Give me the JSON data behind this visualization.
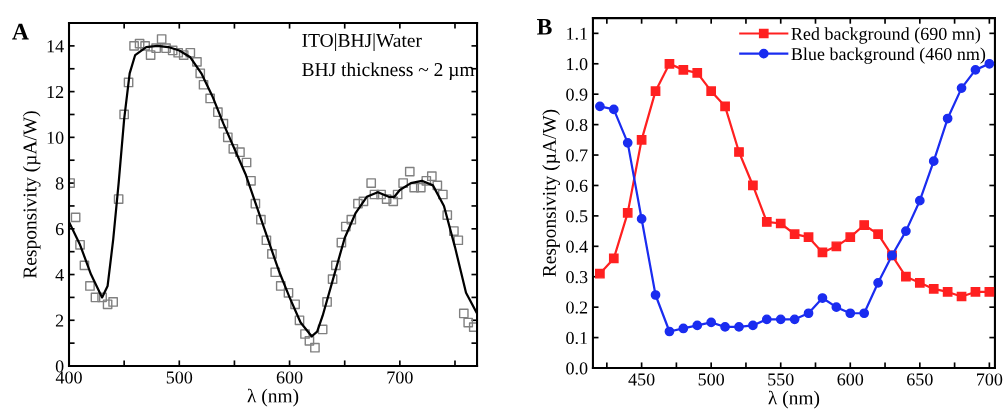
{
  "chart_data": [
    {
      "type": "scatter",
      "xlabel": "λ (nm)",
      "ylabel": "Responsivity (µA/W)",
      "annotations": [
        "A",
        "ITO|BHJ|Water",
        "BHJ thickness ~ 2 µm"
      ],
      "xlim": [
        400,
        770
      ],
      "ylim": [
        0,
        15
      ],
      "xticks": [
        400,
        {
          "value": 450,
          "label": null
        },
        500,
        {
          "value": 550,
          "label": null
        },
        600,
        {
          "value": 650,
          "label": null
        },
        700,
        {
          "value": 750,
          "label": null
        }
      ],
      "yticks": [
        0,
        {
          "value": 1,
          "label": null
        },
        2,
        {
          "value": 3,
          "label": null
        },
        4,
        {
          "value": 5,
          "label": null
        },
        6,
        {
          "value": 7,
          "label": null
        },
        8,
        {
          "value": 9,
          "label": null
        },
        10,
        {
          "value": 11,
          "label": null
        },
        12,
        {
          "value": 13,
          "label": null
        },
        14
      ],
      "grid": false,
      "legend": false,
      "series": [
        {
          "type": "scatter",
          "marker": "square",
          "color": "#808080",
          "x": [
            401,
            406,
            410,
            414,
            419,
            424,
            430,
            435,
            440,
            445,
            450,
            454,
            459,
            464,
            469,
            474,
            479,
            484,
            488,
            494,
            499,
            504,
            510,
            516,
            519,
            522,
            528,
            535,
            540,
            544,
            549,
            555,
            561,
            565,
            569,
            574,
            579,
            584,
            587,
            592,
            599,
            605,
            609,
            614,
            618,
            623,
            630,
            634,
            639,
            642,
            647,
            651,
            656,
            662,
            667,
            674,
            677,
            683,
            688,
            694,
            698,
            703,
            709,
            713,
            719,
            724,
            729,
            734,
            739,
            743,
            749,
            753,
            758,
            762,
            767
          ],
          "values": [
            8.0,
            6.5,
            5.3,
            4.4,
            3.5,
            3.0,
            3.0,
            2.7,
            2.8,
            7.3,
            11.0,
            12.4,
            14.0,
            14.1,
            14.0,
            13.6,
            13.9,
            14.3,
            13.9,
            13.8,
            13.7,
            13.6,
            13.7,
            13.3,
            12.8,
            12.3,
            11.7,
            11.1,
            10.6,
            10.0,
            9.5,
            9.35,
            8.9,
            8.1,
            7.1,
            6.4,
            5.5,
            4.9,
            4.1,
            3.5,
            3.2,
            2.7,
            2.0,
            1.4,
            1.1,
            0.8,
            1.6,
            2.8,
            3.8,
            4.4,
            5.4,
            6.1,
            6.4,
            7.1,
            7.2,
            8.0,
            7.5,
            7.5,
            7.3,
            7.2,
            7.5,
            8.0,
            8.5,
            7.8,
            7.8,
            8.1,
            8.3,
            7.9,
            7.5,
            6.6,
            5.9,
            5.5,
            2.3,
            1.9,
            1.7
          ]
        },
        {
          "type": "line",
          "marker": "none",
          "line_style": "solid",
          "color": "#000000",
          "x": [
            400,
            410,
            420,
            430,
            435,
            440,
            445,
            450,
            455,
            460,
            470,
            480,
            490,
            500,
            510,
            520,
            530,
            540,
            550,
            560,
            570,
            580,
            590,
            600,
            610,
            620,
            625,
            630,
            640,
            650,
            660,
            670,
            680,
            690,
            695,
            700,
            710,
            720,
            730,
            740,
            750,
            760,
            770
          ],
          "values": [
            6.3,
            5.3,
            4.0,
            3.0,
            3.5,
            5.5,
            8.0,
            10.8,
            12.8,
            13.6,
            13.95,
            14.0,
            13.95,
            13.8,
            13.5,
            12.8,
            11.8,
            10.6,
            9.5,
            8.4,
            7.0,
            5.6,
            4.2,
            3.0,
            1.9,
            1.3,
            1.5,
            2.2,
            3.9,
            5.6,
            6.7,
            7.4,
            7.6,
            7.4,
            7.4,
            7.7,
            8.0,
            8.1,
            7.9,
            7.0,
            5.2,
            3.2,
            2.3
          ]
        }
      ]
    },
    {
      "type": "line",
      "xlabel": "λ (nm)",
      "ylabel": "Responsivity (µA/W)",
      "annotations": [
        "B"
      ],
      "xlim": [
        415,
        704
      ],
      "ylim": [
        0,
        1.15
      ],
      "xticks": [
        {
          "value": 425,
          "label": null
        },
        450,
        {
          "value": 475,
          "label": null
        },
        500,
        {
          "value": 525,
          "label": null
        },
        550,
        {
          "value": 575,
          "label": null
        },
        600,
        {
          "value": 625,
          "label": null
        },
        650,
        {
          "value": 675,
          "label": null
        },
        700
      ],
      "yticks": [
        {
          "value": 0,
          "label": "0.0"
        },
        0.1,
        0.2,
        0.3,
        0.4,
        0.5,
        0.6,
        0.7,
        0.8,
        0.9,
        {
          "value": 1,
          "label": "1.0"
        },
        1.1
      ],
      "grid": false,
      "legend": "top right",
      "series": [
        {
          "name": "Red background (690 mn)",
          "marker": "square",
          "line_style": "solid",
          "color": "#ff2020",
          "x": [
            420,
            430,
            440,
            450,
            460,
            470,
            480,
            490,
            500,
            510,
            520,
            530,
            540,
            550,
            560,
            570,
            580,
            590,
            600,
            610,
            620,
            630,
            640,
            650,
            660,
            670,
            680,
            690,
            700
          ],
          "values": [
            0.31,
            0.36,
            0.51,
            0.75,
            0.91,
            1.0,
            0.98,
            0.97,
            0.91,
            0.86,
            0.71,
            0.6,
            0.48,
            0.475,
            0.44,
            0.43,
            0.38,
            0.4,
            0.43,
            0.47,
            0.44,
            0.37,
            0.3,
            0.28,
            0.26,
            0.25,
            0.235,
            0.25,
            0.25
          ]
        },
        {
          "name": "Blue background (460 nm)",
          "marker": "circle",
          "line_style": "solid",
          "color": "#1a2cf0",
          "x": [
            420,
            430,
            440,
            450,
            460,
            470,
            480,
            490,
            500,
            510,
            520,
            530,
            540,
            550,
            560,
            570,
            580,
            590,
            600,
            610,
            620,
            630,
            640,
            650,
            660,
            670,
            680,
            690,
            700
          ],
          "values": [
            0.86,
            0.85,
            0.74,
            0.49,
            0.24,
            0.12,
            0.13,
            0.14,
            0.15,
            0.135,
            0.135,
            0.14,
            0.16,
            0.16,
            0.16,
            0.18,
            0.23,
            0.2,
            0.18,
            0.18,
            0.28,
            0.37,
            0.45,
            0.55,
            0.68,
            0.82,
            0.92,
            0.98,
            1.0
          ]
        }
      ]
    }
  ]
}
